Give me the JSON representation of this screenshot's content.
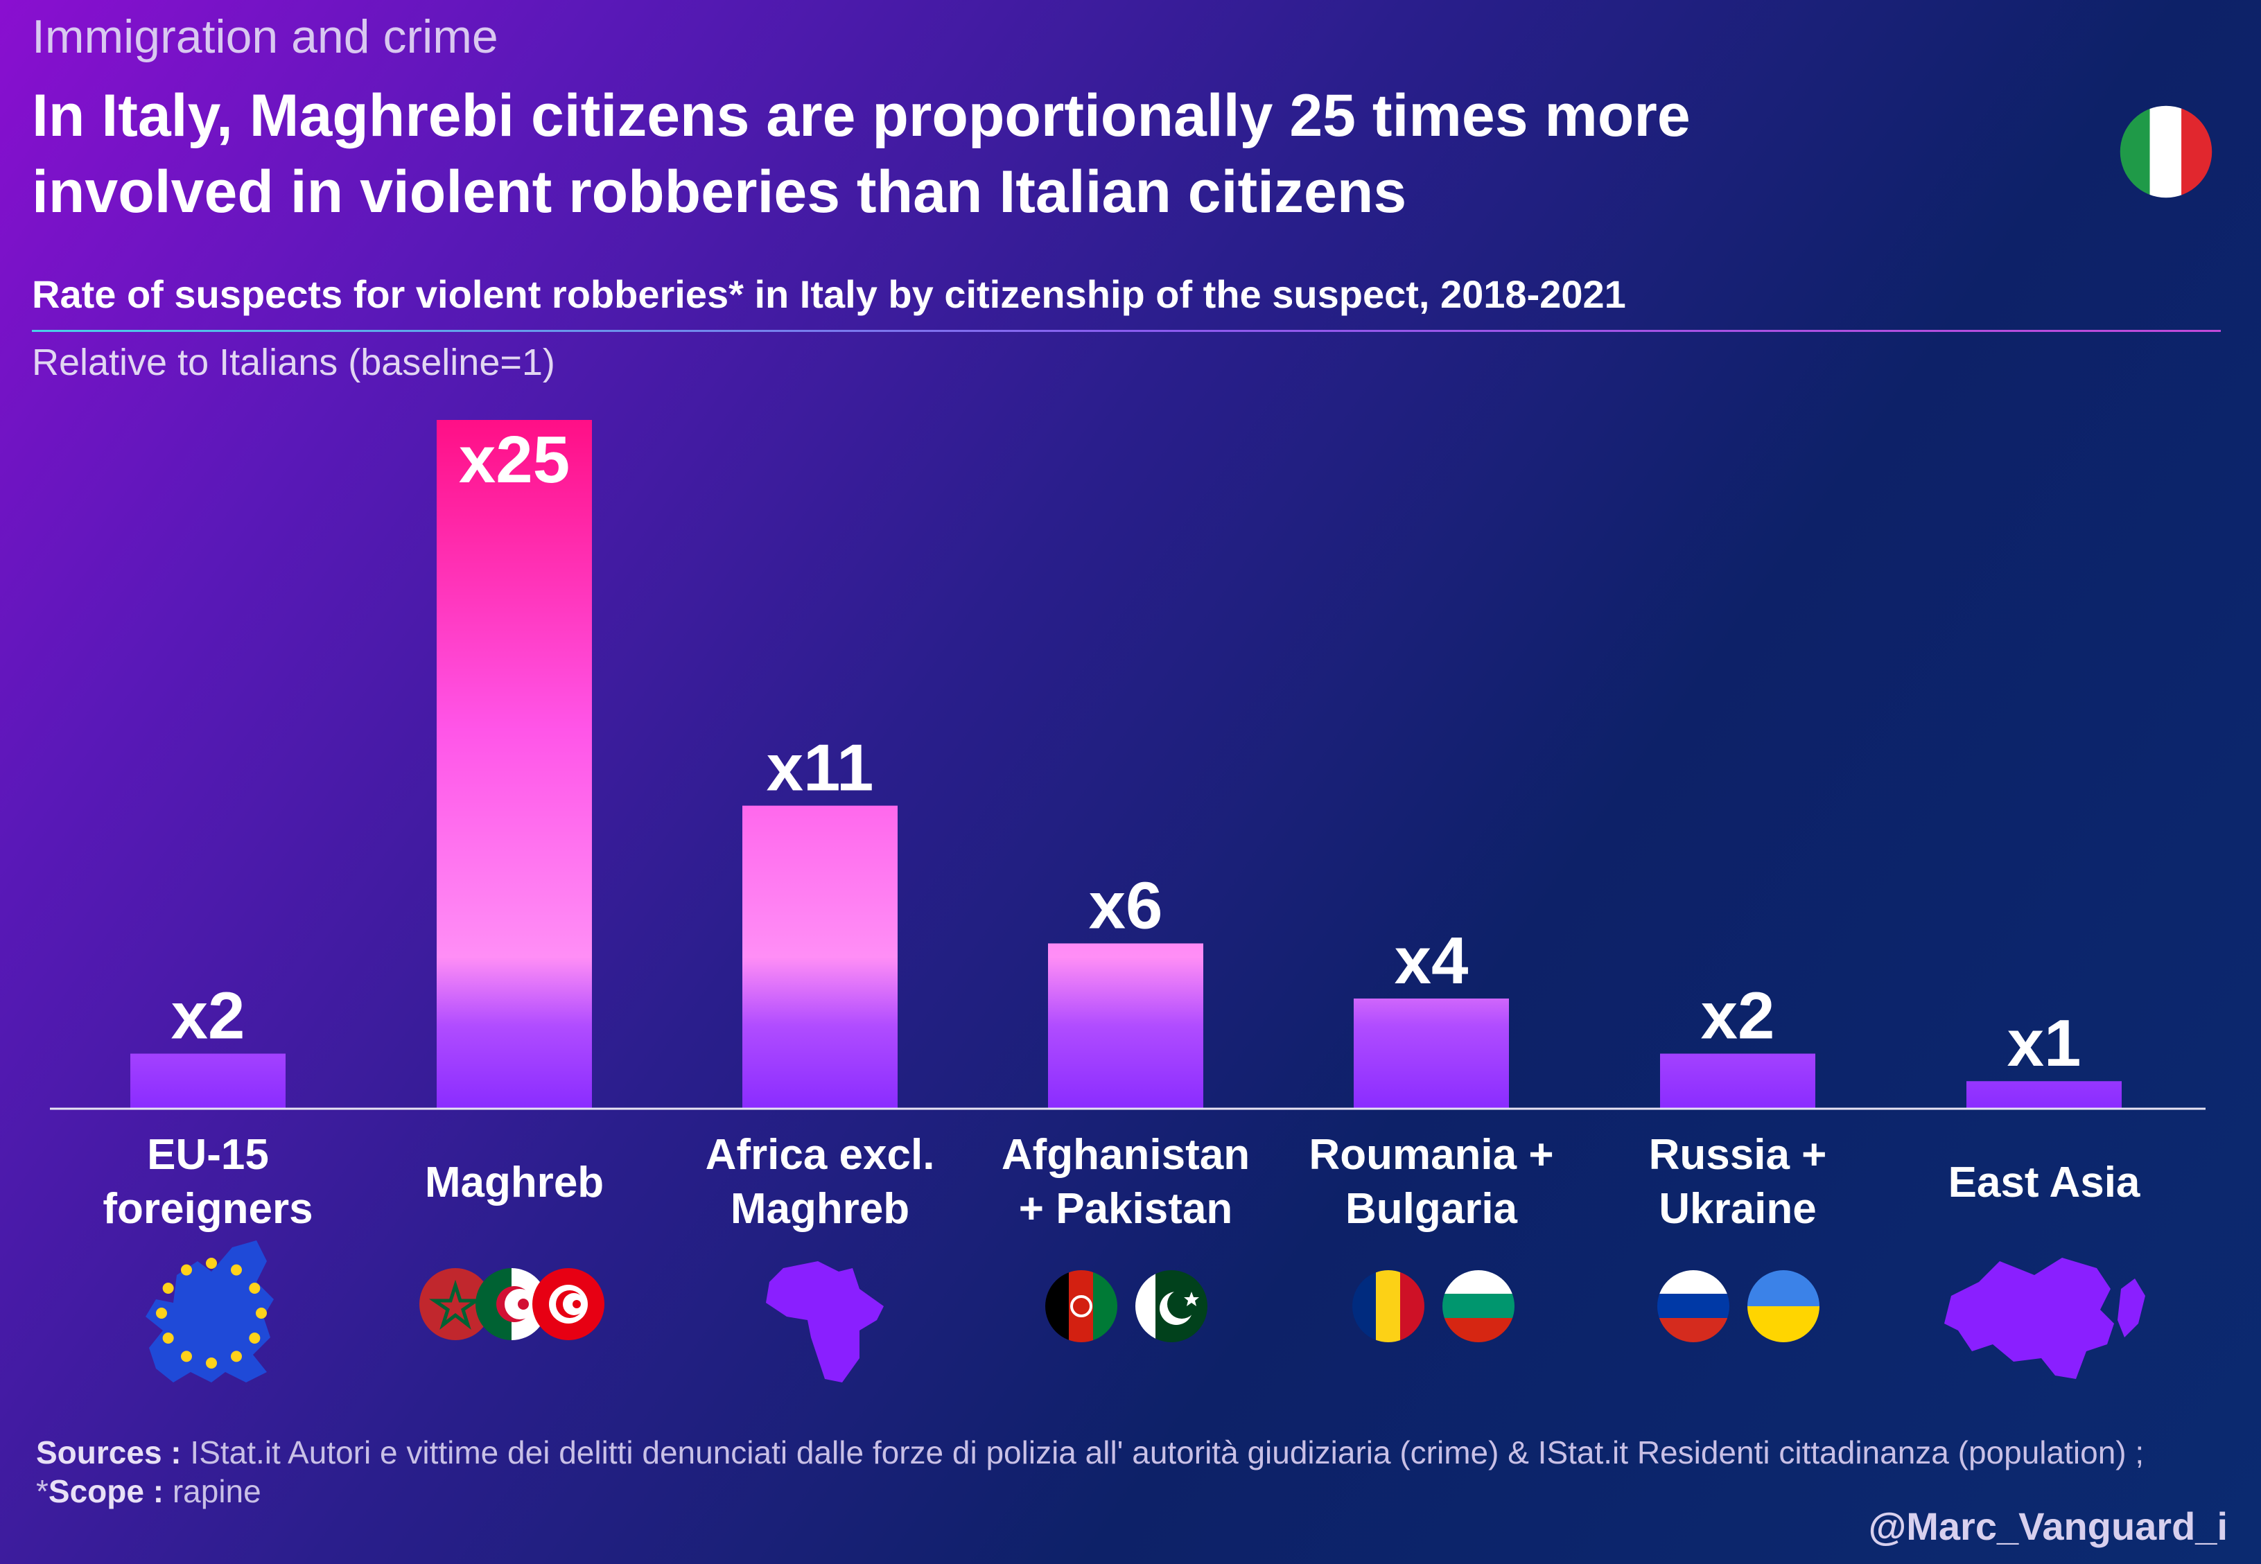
{
  "header": {
    "topic": "Immigration and crime",
    "title": "In Italy, Maghrebi citizens are proportionally 25 times more involved in violent robberies than Italian citizens",
    "subtitle": "Rate of suspects for violent robberies* in Italy by citizenship of the suspect, 2018-2021",
    "unit_note": "Relative to Italians (baseline=1)"
  },
  "chart_data": {
    "type": "bar",
    "title": "Rate of suspects for violent robberies* in Italy by citizenship of the suspect, 2018-2021",
    "ylabel": "Relative to Italians (baseline=1)",
    "xlabel": "",
    "categories": [
      "EU-15 foreigners",
      "Maghreb",
      "Africa excl. Maghreb",
      "Afghanistan + Pakistan",
      "Roumania + Bulgaria",
      "Russia + Ukraine",
      "East Asia"
    ],
    "values": [
      2,
      25,
      11,
      6,
      4,
      2,
      1
    ],
    "labels": [
      "x2",
      "x25",
      "x11",
      "x6",
      "x4",
      "x2",
      "x1"
    ],
    "ylim": [
      0,
      25
    ],
    "grid": false,
    "legend": "none",
    "colors": {
      "bar_low": "#8a2cff",
      "bar_mid": "#ff8ef0",
      "bar_high": "#ff0f8c",
      "highlight": "#ff0f8c"
    }
  },
  "categories_display": [
    {
      "line1": "EU-15",
      "line2": "foreigners",
      "icon": "eu-map-icon"
    },
    {
      "line1": "Maghreb",
      "line2": "",
      "icon": "maghreb-flags-icon"
    },
    {
      "line1": "Africa excl.",
      "line2": "Maghreb",
      "icon": "africa-map-icon"
    },
    {
      "line1": "Afghanistan",
      "line2": "+ Pakistan",
      "icon": "afghanistan-pakistan-flags-icon"
    },
    {
      "line1": "Roumania +",
      "line2": "Bulgaria",
      "icon": "romania-bulgaria-flags-icon"
    },
    {
      "line1": "Russia +",
      "line2": "Ukraine",
      "icon": "russia-ukraine-flags-icon"
    },
    {
      "line1": "East Asia",
      "line2": "",
      "icon": "east-asia-map-icon"
    }
  ],
  "footer": {
    "sources_label": "Sources :",
    "sources_text": " IStat.it Autori e vittime dei delitti denunciati dalle forze di polizia all' autorità giudiziaria (crime) & IStat.it Residenti cittadinanza (population) ; *",
    "scope_label": "Scope :",
    "scope_text": " rapine",
    "handle": "@Marc_Vanguard_i"
  },
  "icons": {
    "italy_flag": "italy-flag-icon"
  }
}
